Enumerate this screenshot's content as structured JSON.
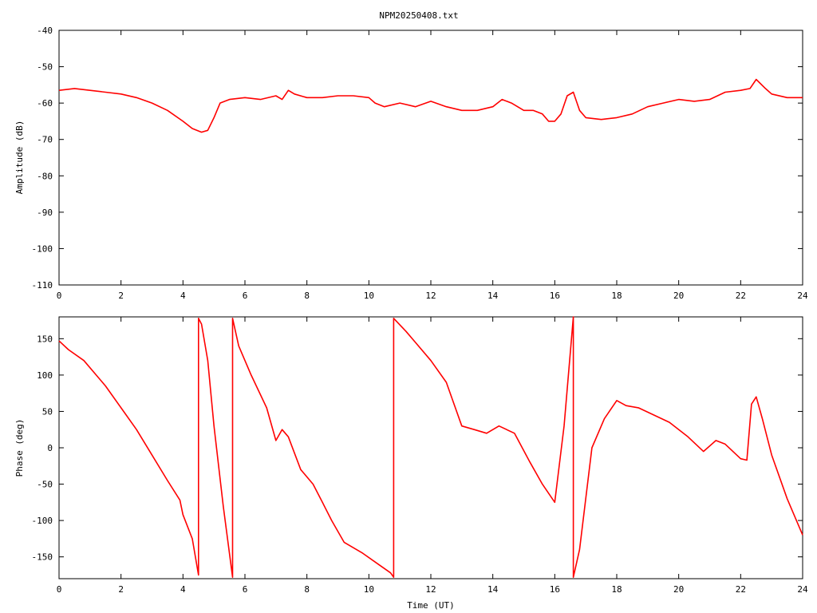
{
  "title": "NPM20250408.txt",
  "colors": {
    "trace": "#ff0000",
    "axes": "#000000",
    "background": "#ffffff"
  },
  "chart_data": [
    {
      "type": "line",
      "ylabel": "Amplitude (dB)",
      "xlabel": "",
      "xlim": [
        0,
        24
      ],
      "ylim": [
        -110,
        -40
      ],
      "x_ticks": [
        "0",
        "2",
        "4",
        "6",
        "8",
        "10",
        "12",
        "14",
        "16",
        "18",
        "20",
        "22",
        "24"
      ],
      "y_ticks": [
        "-40",
        "-50",
        "-60",
        "-70",
        "-80",
        "-90",
        "-100",
        "-110"
      ],
      "grid": false,
      "series": [
        {
          "x": [
            0,
            0.5,
            1,
            1.5,
            2,
            2.5,
            3,
            3.5,
            4,
            4.3,
            4.6,
            4.8,
            5,
            5.2,
            5.5,
            6,
            6.5,
            7,
            7.2,
            7.4,
            7.6,
            8,
            8.5,
            9,
            9.5,
            10,
            10.2,
            10.5,
            11,
            11.5,
            12,
            12.5,
            13,
            13.5,
            14,
            14.3,
            14.6,
            15,
            15.3,
            15.6,
            15.8,
            16,
            16.2,
            16.4,
            16.6,
            16.8,
            17,
            17.5,
            18,
            18.5,
            19,
            19.5,
            20,
            20.5,
            21,
            21.5,
            22,
            22.3,
            22.5,
            22.8,
            23,
            23.5,
            24
          ],
          "y": [
            -56.5,
            -56,
            -56.5,
            -57,
            -57.5,
            -58.5,
            -60,
            -62,
            -65,
            -67,
            -68,
            -67.5,
            -64,
            -60,
            -59,
            -58.5,
            -59,
            -58,
            -59,
            -56.5,
            -57.5,
            -58.5,
            -58.5,
            -58,
            -58,
            -58.5,
            -60,
            -61,
            -60,
            -61,
            -59.5,
            -61,
            -62,
            -62,
            -61,
            -59,
            -60,
            -62,
            -62,
            -63,
            -65,
            -65,
            -63,
            -58,
            -57,
            -62,
            -64,
            -64.5,
            -64,
            -63,
            -61,
            -60,
            -59,
            -59.5,
            -59,
            -57,
            -56.5,
            -56,
            -53.5,
            -56,
            -57.5,
            -58.5,
            -58.5
          ]
        }
      ]
    },
    {
      "type": "line",
      "ylabel": "Phase (deg)",
      "xlabel": "Time (UT)",
      "xlim": [
        0,
        24
      ],
      "ylim": [
        -180,
        180
      ],
      "x_ticks": [
        "0",
        "2",
        "4",
        "6",
        "8",
        "10",
        "12",
        "14",
        "16",
        "18",
        "20",
        "22",
        "24"
      ],
      "y_ticks": [
        "150",
        "100",
        "50",
        "0",
        "-50",
        "-100",
        "-150"
      ],
      "grid": false,
      "series": [
        {
          "x": [
            0,
            0.3,
            0.8,
            1.5,
            2,
            2.5,
            3,
            3.5,
            3.9,
            4.0,
            4.3,
            4.5,
            4.5,
            4.6,
            4.8,
            5.0,
            5.3,
            5.6,
            5.6,
            5.8,
            6.2,
            6.7,
            7.0,
            7.2,
            7.4,
            7.8,
            8.2,
            8.5,
            8.8,
            9.2,
            9.8,
            10.3,
            10.7,
            10.8,
            10.8,
            11.2,
            11.5,
            12,
            12.5,
            13,
            13.4,
            13.8,
            14.2,
            14.7,
            15.2,
            15.6,
            16.0,
            16.3,
            16.6,
            16.6,
            16.8,
            17.2,
            17.6,
            18.0,
            18.3,
            18.7,
            19.2,
            19.7,
            20.3,
            20.8,
            21.2,
            21.5,
            22.0,
            22.2,
            22.35,
            22.5,
            22.7,
            23.0,
            23.5,
            24
          ],
          "y": [
            147,
            135,
            120,
            85,
            55,
            25,
            -10,
            -45,
            -72,
            -92,
            -125,
            -175,
            178,
            170,
            120,
            30,
            -80,
            -178,
            178,
            140,
            100,
            55,
            10,
            25,
            15,
            -30,
            -50,
            -75,
            -100,
            -130,
            -145,
            -160,
            -172,
            -178,
            178,
            160,
            145,
            120,
            90,
            30,
            25,
            20,
            30,
            20,
            -20,
            -50,
            -75,
            30,
            180,
            -178,
            -140,
            0,
            40,
            65,
            58,
            55,
            45,
            35,
            15,
            -5,
            10,
            5,
            -15,
            -17,
            60,
            70,
            40,
            -10,
            -70,
            -120
          ]
        }
      ]
    }
  ]
}
